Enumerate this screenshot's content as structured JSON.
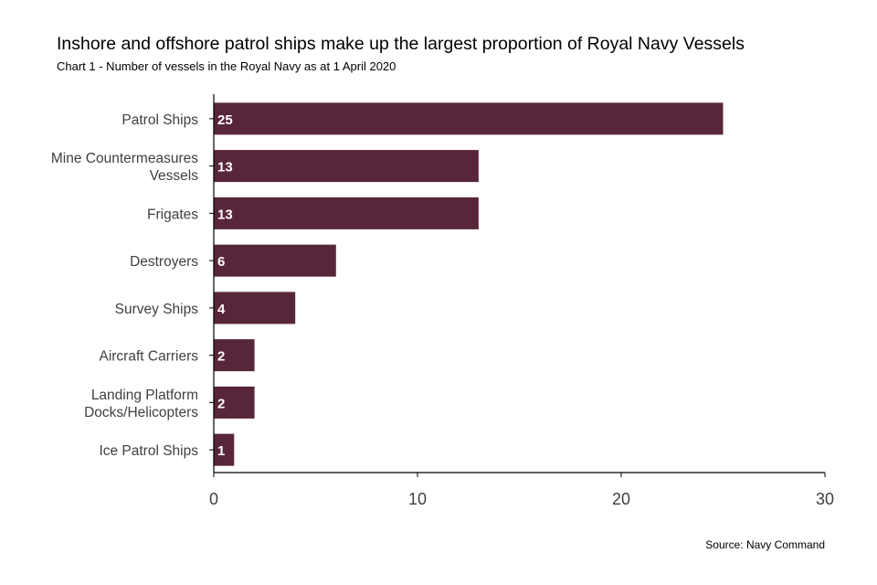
{
  "title": "Inshore and offshore patrol ships make up the largest proportion of Royal Navy Vessels",
  "subtitle": "Chart 1 - Number of vessels in the Royal Navy as at 1 April 2020",
  "source": "Source: Navy Command",
  "chart_data": {
    "type": "bar",
    "orientation": "horizontal",
    "categories": [
      [
        "Patrol Ships"
      ],
      [
        "Mine Countermeasures",
        "Vessels"
      ],
      [
        "Frigates"
      ],
      [
        "Destroyers"
      ],
      [
        "Survey Ships"
      ],
      [
        "Aircraft Carriers"
      ],
      [
        "Landing Platform",
        "Docks/Helicopters"
      ],
      [
        "Ice Patrol Ships"
      ]
    ],
    "values": [
      25,
      13,
      13,
      6,
      4,
      2,
      2,
      1
    ],
    "data_labels": [
      "25",
      "13",
      "13",
      "6",
      "4",
      "2",
      "2",
      "1"
    ],
    "xlim": [
      0,
      30
    ],
    "xticks": [
      "0",
      "10",
      "20",
      "30"
    ],
    "grid": false,
    "legend": "none",
    "bar_color": "#58263a"
  }
}
